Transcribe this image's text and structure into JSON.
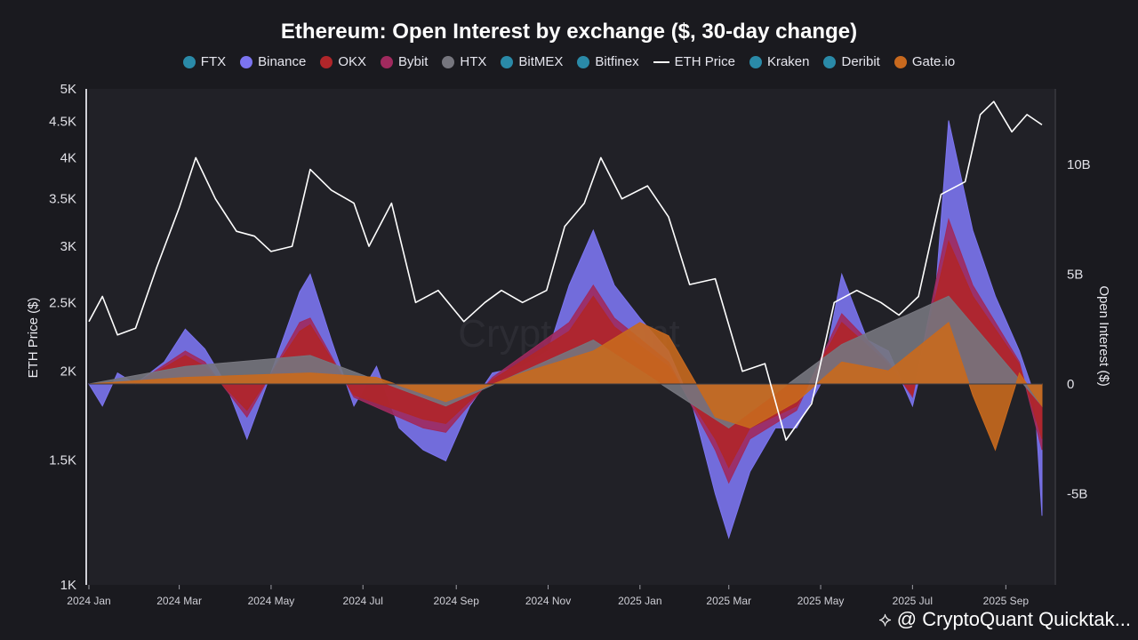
{
  "title": "Ethereum: Open Interest by exchange ($, 30-day change)",
  "legend": [
    {
      "label": "FTX",
      "color": "#2a8aa8",
      "kind": "dot"
    },
    {
      "label": "Binance",
      "color": "#7b74f0",
      "kind": "dot"
    },
    {
      "label": "OKX",
      "color": "#b0262a",
      "kind": "dot"
    },
    {
      "label": "Bybit",
      "color": "#a02a5e",
      "kind": "dot"
    },
    {
      "label": "HTX",
      "color": "#76767e",
      "kind": "dot"
    },
    {
      "label": "BitMEX",
      "color": "#2a8aa8",
      "kind": "dot"
    },
    {
      "label": "Bitfinex",
      "color": "#2a8aa8",
      "kind": "dot"
    },
    {
      "label": "ETH Price",
      "color": "#ffffff",
      "kind": "line"
    },
    {
      "label": "Kraken",
      "color": "#2a8aa8",
      "kind": "dot"
    },
    {
      "label": "Deribit",
      "color": "#2a8aa8",
      "kind": "dot"
    },
    {
      "label": "Gate.io",
      "color": "#c8691e",
      "kind": "dot"
    }
  ],
  "watermark": "CryptoQuant",
  "brand": "@ CryptoQuant Quicktak...",
  "chart_data": {
    "type": "area",
    "title": "Ethereum: Open Interest by exchange ($, 30-day change)",
    "xlabel": "",
    "ylabel_left": "ETH Price ($)",
    "ylabel_right": "Open Interest ($)",
    "y_left_scale": "log",
    "y_left_range": [
      1000,
      5000
    ],
    "y_left_ticks": [
      "5K",
      "4.5K",
      "4K",
      "3.5K",
      "3K",
      "2.5K",
      "2K",
      "1.5K",
      "1K"
    ],
    "y_left_tick_values": [
      5000,
      4500,
      4000,
      3500,
      3000,
      2500,
      2000,
      1500,
      1000
    ],
    "y_right_range": [
      -9,
      13.5
    ],
    "y_right_ticks": [
      "10B",
      "5B",
      "0",
      "-5B"
    ],
    "y_right_tick_values": [
      10,
      5,
      0,
      -5
    ],
    "x_range": [
      "2024-01-01",
      "2025-09-25"
    ],
    "x_ticks": [
      "2024 Jan",
      "2024 Mar",
      "2024 May",
      "2024 Jul",
      "2024 Sep",
      "2024 Nov",
      "2025 Jan",
      "2025 Mar",
      "2025 May",
      "2025 Jul",
      "2025 Sep"
    ],
    "x_tick_dates": [
      "2024-01-01",
      "2024-03-01",
      "2024-05-01",
      "2024-07-01",
      "2024-09-01",
      "2024-11-01",
      "2025-01-01",
      "2025-03-01",
      "2025-05-01",
      "2025-07-01",
      "2025-09-01"
    ],
    "grid": false,
    "legend_position": "top",
    "eth_price": {
      "name": "ETH Price",
      "color": "#ffffff",
      "dates": [
        "2024-01-01",
        "2024-01-10",
        "2024-01-20",
        "2024-02-01",
        "2024-02-15",
        "2024-03-01",
        "2024-03-12",
        "2024-03-25",
        "2024-04-08",
        "2024-04-20",
        "2024-05-01",
        "2024-05-15",
        "2024-05-27",
        "2024-06-10",
        "2024-06-25",
        "2024-07-05",
        "2024-07-20",
        "2024-08-05",
        "2024-08-20",
        "2024-09-06",
        "2024-09-20",
        "2024-10-01",
        "2024-10-15",
        "2024-10-31",
        "2024-11-12",
        "2024-11-25",
        "2024-12-06",
        "2024-12-20",
        "2025-01-06",
        "2025-01-20",
        "2025-02-03",
        "2025-02-20",
        "2025-03-10",
        "2025-03-25",
        "2025-04-08",
        "2025-04-25",
        "2025-05-10",
        "2025-05-25",
        "2025-06-10",
        "2025-06-22",
        "2025-07-05",
        "2025-07-20",
        "2025-08-05",
        "2025-08-15",
        "2025-08-24",
        "2025-09-05",
        "2025-09-15",
        "2025-09-25"
      ],
      "values": [
        2350,
        2550,
        2250,
        2300,
        2800,
        3400,
        4000,
        3500,
        3150,
        3100,
        2950,
        3000,
        3850,
        3600,
        3450,
        3000,
        3450,
        2500,
        2600,
        2350,
        2500,
        2600,
        2500,
        2600,
        3200,
        3450,
        4000,
        3500,
        3650,
        3300,
        2650,
        2700,
        2000,
        2050,
        1600,
        1800,
        2500,
        2600,
        2500,
        2400,
        2550,
        3550,
        3700,
        4600,
        4800,
        4350,
        4600,
        4450
      ]
    },
    "series": [
      {
        "name": "Binance",
        "color": "#7b74f0",
        "dates": [
          "2024-01-01",
          "2024-01-10",
          "2024-01-20",
          "2024-02-01",
          "2024-02-20",
          "2024-03-05",
          "2024-03-18",
          "2024-04-01",
          "2024-04-15",
          "2024-05-01",
          "2024-05-20",
          "2024-05-27",
          "2024-06-10",
          "2024-06-25",
          "2024-07-10",
          "2024-07-25",
          "2024-08-10",
          "2024-08-25",
          "2024-09-10",
          "2024-09-25",
          "2024-10-15",
          "2024-11-01",
          "2024-11-15",
          "2024-12-01",
          "2024-12-15",
          "2025-01-01",
          "2025-01-20",
          "2025-02-05",
          "2025-02-20",
          "2025-03-01",
          "2025-03-15",
          "2025-04-01",
          "2025-04-15",
          "2025-05-01",
          "2025-05-15",
          "2025-06-01",
          "2025-06-15",
          "2025-07-01",
          "2025-07-15",
          "2025-07-25",
          "2025-08-10",
          "2025-08-25",
          "2025-09-10",
          "2025-09-20",
          "2025-09-25"
        ],
        "values": [
          0,
          -1.0,
          0.5,
          0,
          1.0,
          2.5,
          1.6,
          0,
          -2.5,
          0.5,
          4.2,
          5.0,
          2.0,
          -1.0,
          0.8,
          -2.0,
          -3.0,
          -3.5,
          -1.0,
          0.5,
          0.8,
          1.5,
          4.5,
          7.0,
          4.5,
          3.0,
          1.5,
          -1.0,
          -5.0,
          -7.0,
          -4.0,
          -2.0,
          -2.0,
          0,
          5.0,
          2.0,
          1.5,
          -1.0,
          3.0,
          12.0,
          7.0,
          4.0,
          1.5,
          -0.5,
          -6.0
        ]
      },
      {
        "name": "Bybit",
        "color": "#a02a5e",
        "dates": [
          "2024-01-01",
          "2024-02-01",
          "2024-03-05",
          "2024-03-18",
          "2024-04-15",
          "2024-05-20",
          "2024-05-27",
          "2024-06-25",
          "2024-08-10",
          "2024-08-25",
          "2024-09-25",
          "2024-11-15",
          "2024-12-01",
          "2024-12-15",
          "2025-01-20",
          "2025-02-20",
          "2025-03-01",
          "2025-03-15",
          "2025-04-15",
          "2025-05-15",
          "2025-06-15",
          "2025-07-01",
          "2025-07-25",
          "2025-08-10",
          "2025-09-10",
          "2025-09-25"
        ],
        "values": [
          0,
          0,
          1.5,
          1.0,
          -1.5,
          2.8,
          3.0,
          -0.6,
          -2.0,
          -2.2,
          0.3,
          2.8,
          4.5,
          3.0,
          1.0,
          -3.0,
          -4.5,
          -2.5,
          -1.2,
          3.2,
          1.0,
          -0.6,
          7.5,
          4.5,
          1.0,
          -3.0
        ]
      },
      {
        "name": "OKX",
        "color": "#b0262a",
        "dates": [
          "2024-01-01",
          "2024-02-01",
          "2024-03-05",
          "2024-03-18",
          "2024-04-15",
          "2024-05-20",
          "2024-05-27",
          "2024-06-25",
          "2024-08-10",
          "2024-08-25",
          "2024-09-25",
          "2024-11-15",
          "2024-12-01",
          "2024-12-15",
          "2025-01-20",
          "2025-02-20",
          "2025-03-01",
          "2025-03-15",
          "2025-04-15",
          "2025-05-15",
          "2025-06-15",
          "2025-07-01",
          "2025-07-25",
          "2025-08-10",
          "2025-09-10",
          "2025-09-25"
        ],
        "values": [
          0,
          0,
          1.3,
          0.8,
          -1.2,
          2.4,
          2.7,
          -0.5,
          -1.6,
          -1.8,
          0.2,
          2.4,
          4.0,
          2.6,
          0.8,
          -2.5,
          -3.8,
          -2.0,
          -1.0,
          2.8,
          0.9,
          -0.5,
          6.5,
          4.0,
          0.9,
          -2.5
        ]
      },
      {
        "name": "HTX",
        "color": "#76767e",
        "dates": [
          "2024-01-01",
          "2024-03-05",
          "2024-05-27",
          "2024-08-25",
          "2024-12-01",
          "2025-03-01",
          "2025-05-15",
          "2025-07-25",
          "2025-09-25"
        ],
        "values": [
          0,
          0.8,
          1.3,
          -1.0,
          2.0,
          -2.0,
          1.8,
          4.0,
          -1.0
        ]
      },
      {
        "name": "Gate.io",
        "color": "#c8691e",
        "dates": [
          "2024-01-01",
          "2024-03-05",
          "2024-05-27",
          "2024-07-10",
          "2024-08-25",
          "2024-10-15",
          "2024-12-01",
          "2025-01-01",
          "2025-01-20",
          "2025-02-20",
          "2025-03-15",
          "2025-04-15",
          "2025-05-15",
          "2025-06-15",
          "2025-07-25",
          "2025-08-10",
          "2025-08-25",
          "2025-09-10",
          "2025-09-25"
        ],
        "values": [
          0,
          0.3,
          0.5,
          0.3,
          -0.8,
          0.5,
          1.5,
          2.8,
          2.2,
          -1.5,
          -2.0,
          -0.8,
          1.0,
          0.6,
          2.8,
          -0.5,
          -3.0,
          0.5,
          -1.0
        ]
      }
    ]
  }
}
